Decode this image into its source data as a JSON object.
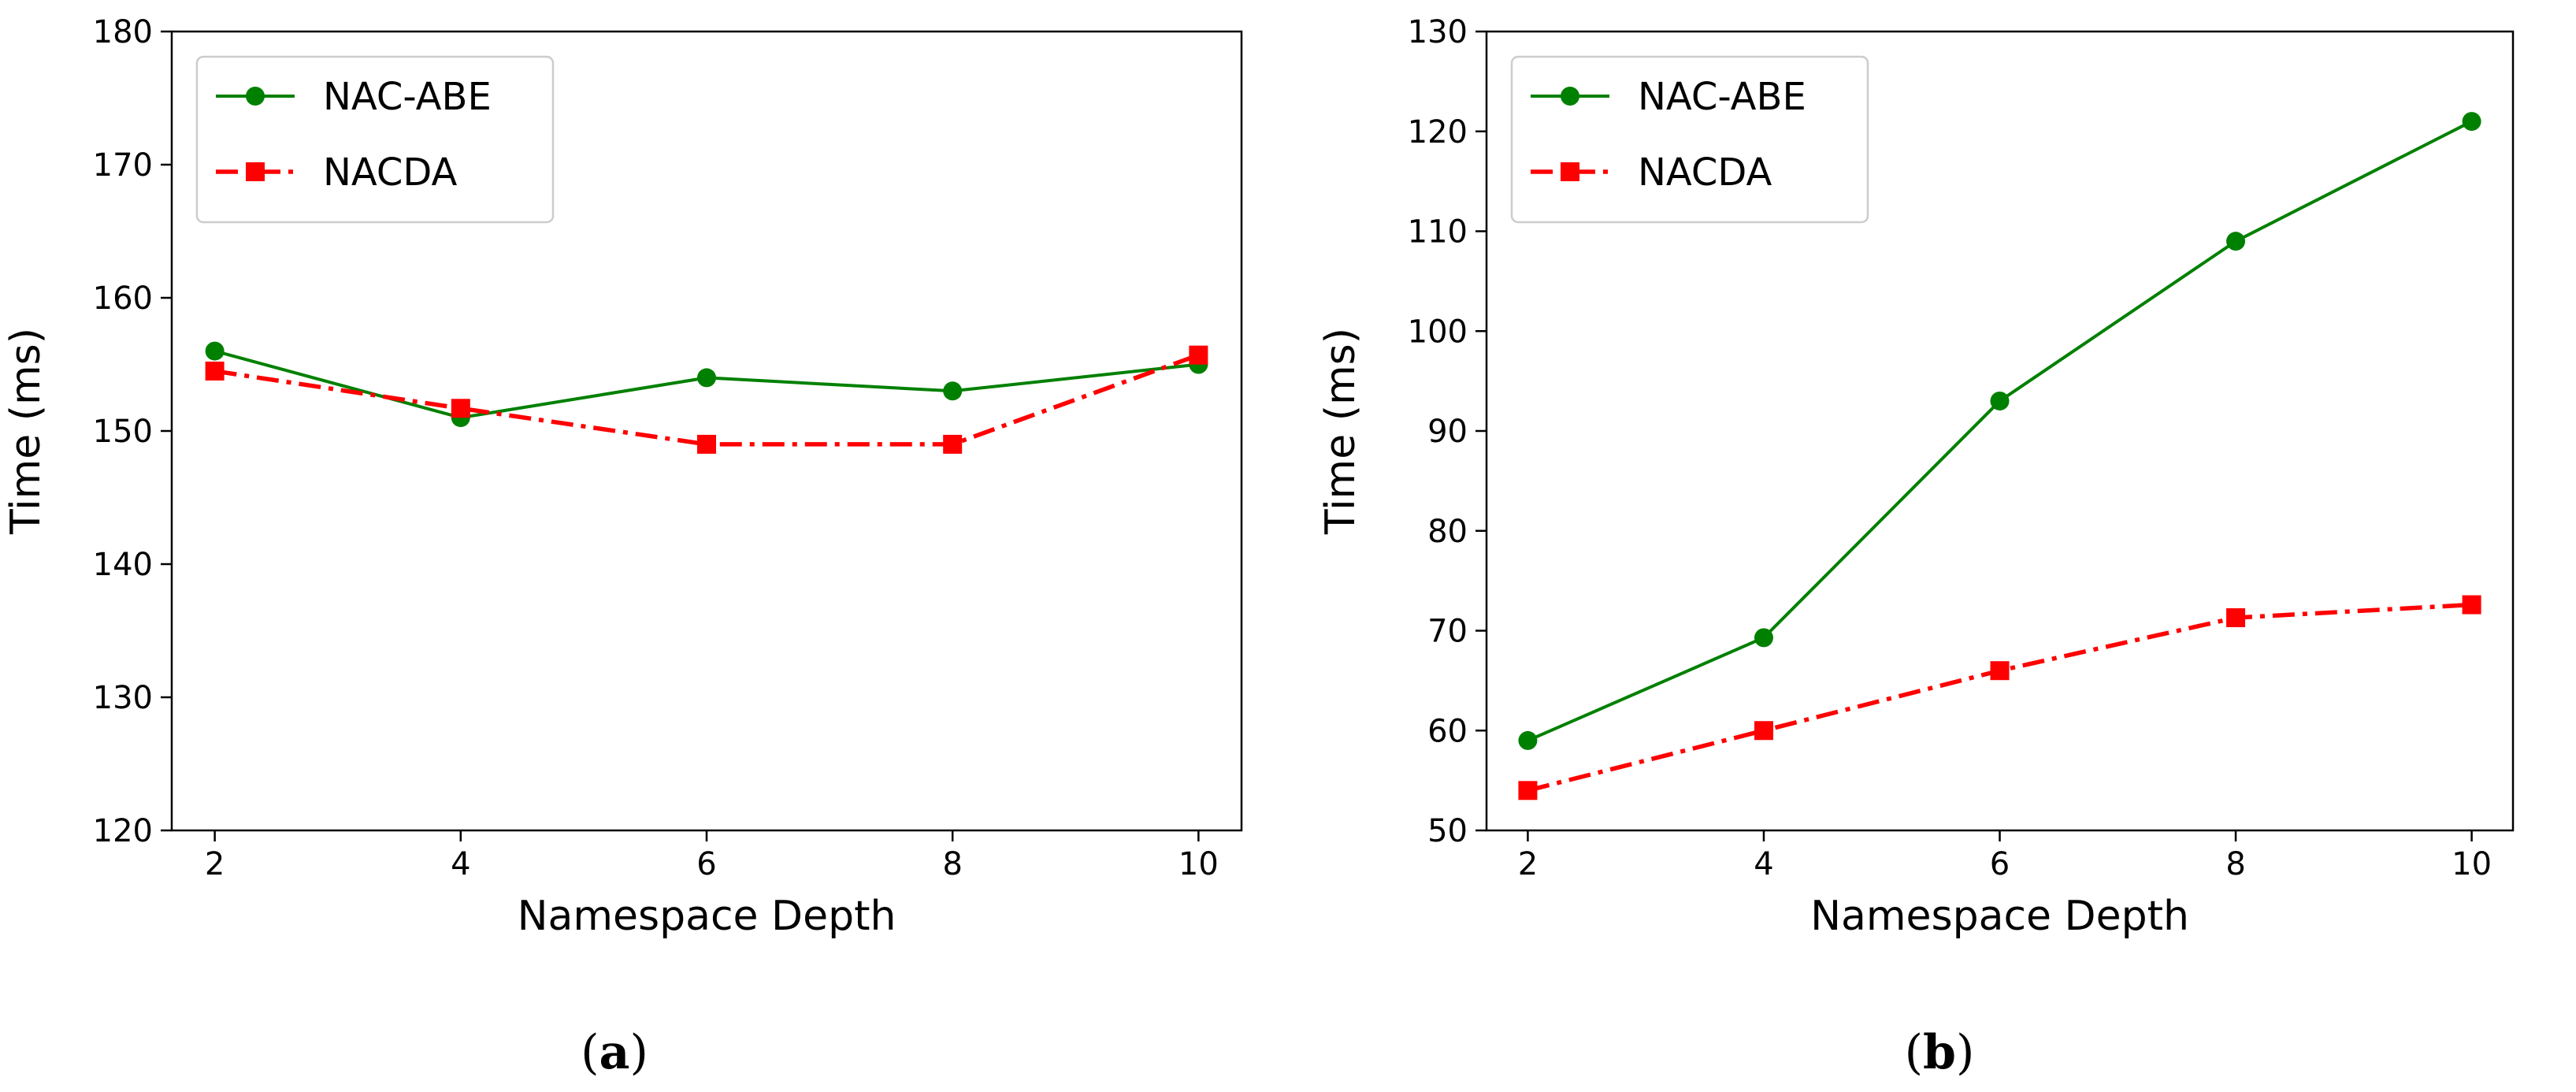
{
  "chart_data": [
    {
      "type": "line",
      "panel": "a",
      "caption": "(a)",
      "caption_letter": "a",
      "xlabel": "Namespace Depth",
      "ylabel": "Time (ms)",
      "x": [
        2,
        4,
        6,
        8,
        10
      ],
      "xticks": [
        2,
        4,
        6,
        8,
        10
      ],
      "yticks": [
        120,
        130,
        140,
        150,
        160,
        170,
        180
      ],
      "ylim": [
        120,
        180
      ],
      "legend_position": "top-left",
      "series": [
        {
          "name": "NAC-ABE",
          "color": "#008000",
          "marker": "circle",
          "linestyle": "solid",
          "values": [
            156,
            151,
            154,
            153,
            155
          ]
        },
        {
          "name": "NACDA",
          "color": "#ff0000",
          "marker": "square",
          "linestyle": "dashdot",
          "values": [
            154.5,
            151.7,
            149,
            149,
            155.7
          ]
        }
      ]
    },
    {
      "type": "line",
      "panel": "b",
      "caption": "(b)",
      "caption_letter": "b",
      "xlabel": "Namespace Depth",
      "ylabel": "Time (ms)",
      "x": [
        2,
        4,
        6,
        8,
        10
      ],
      "xticks": [
        2,
        4,
        6,
        8,
        10
      ],
      "yticks": [
        50,
        60,
        70,
        80,
        90,
        100,
        110,
        120,
        130
      ],
      "ylim": [
        50,
        130
      ],
      "legend_position": "top-left",
      "series": [
        {
          "name": "NAC-ABE",
          "color": "#008000",
          "marker": "circle",
          "linestyle": "solid",
          "values": [
            59,
            69.3,
            93,
            109,
            121
          ]
        },
        {
          "name": "NACDA",
          "color": "#ff0000",
          "marker": "square",
          "linestyle": "dashdot",
          "values": [
            54,
            60,
            66,
            71.3,
            72.6
          ]
        }
      ]
    }
  ]
}
